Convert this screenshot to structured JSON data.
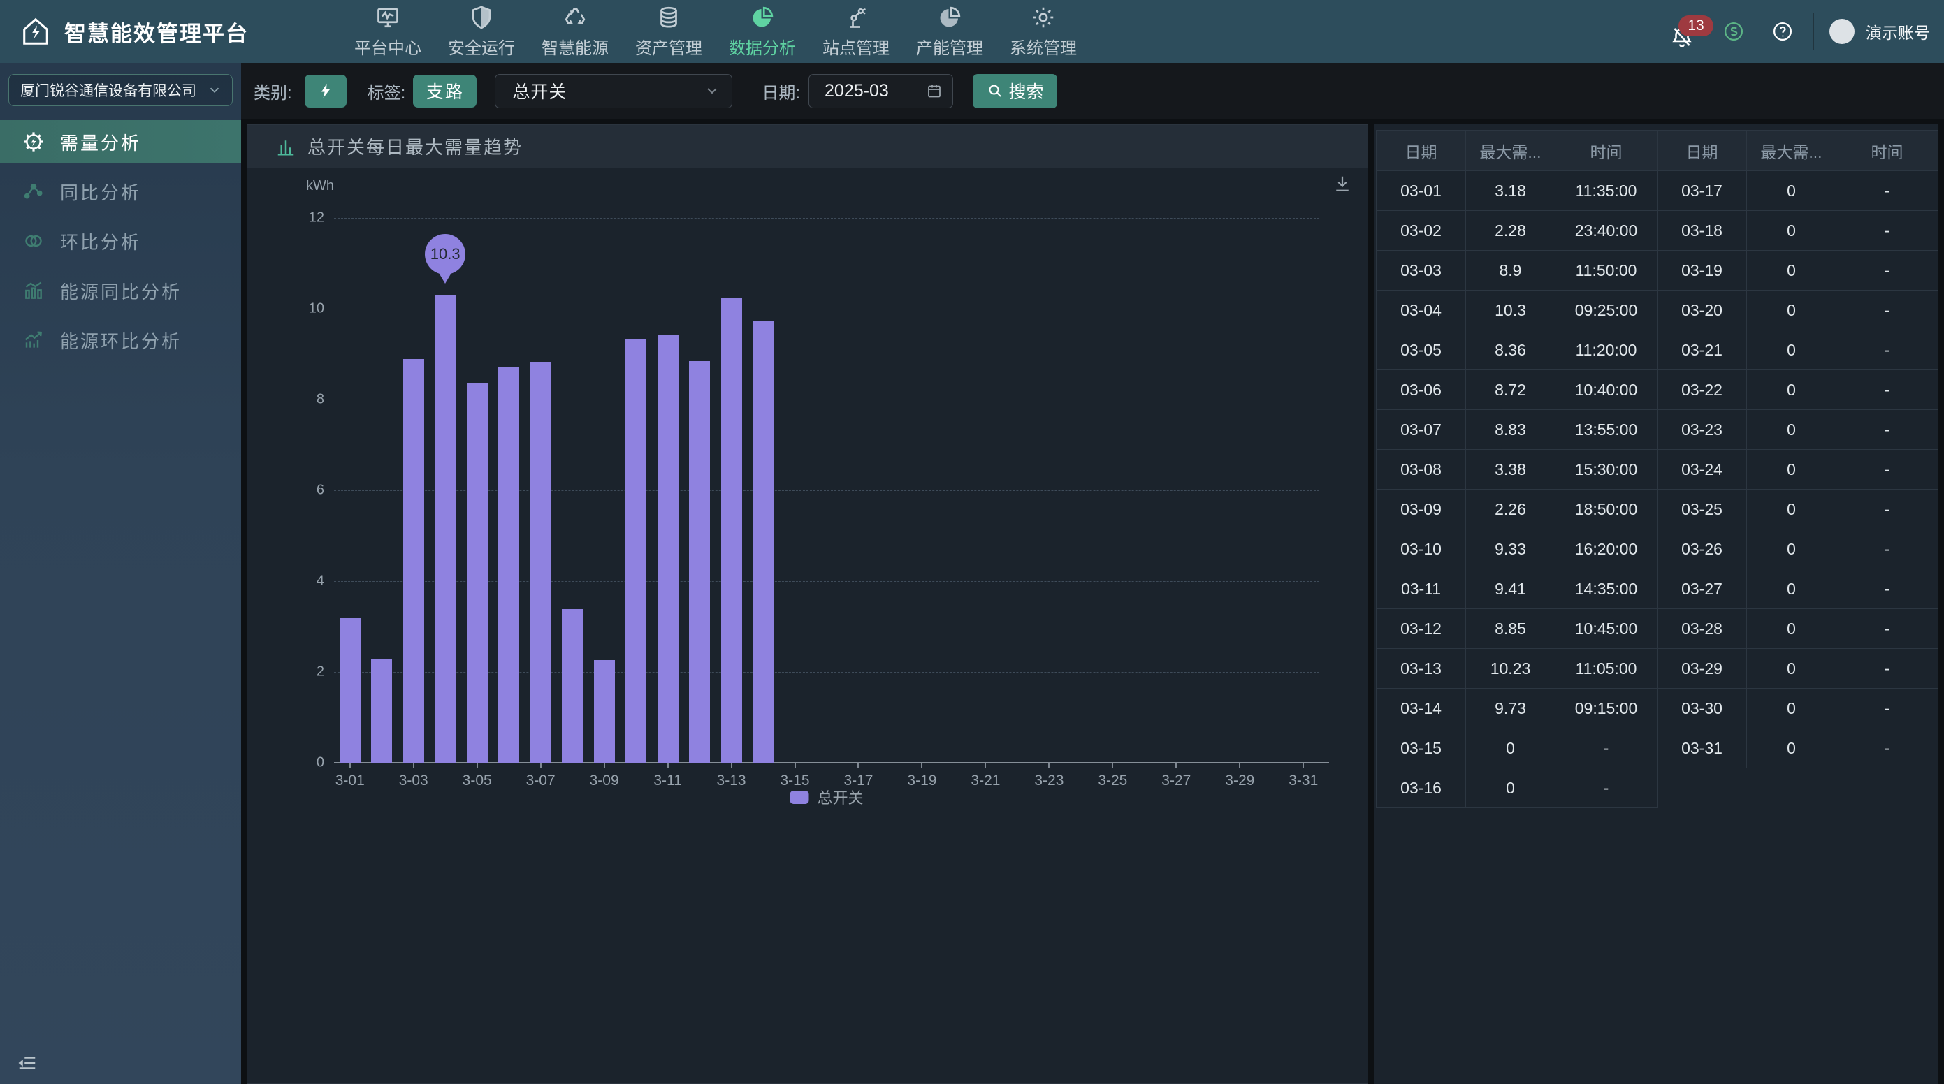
{
  "app_title": "智慧能效管理平台",
  "topnav": {
    "items": [
      {
        "label": "平台中心",
        "icon": "platform-center",
        "active": false
      },
      {
        "label": "安全运行",
        "icon": "safety-run",
        "active": false
      },
      {
        "label": "智慧能源",
        "icon": "smart-energy",
        "active": false
      },
      {
        "label": "资产管理",
        "icon": "asset-management",
        "active": false
      },
      {
        "label": "数据分析",
        "icon": "data-analysis",
        "active": true
      },
      {
        "label": "站点管理",
        "icon": "site-management",
        "active": false
      },
      {
        "label": "产能管理",
        "icon": "capacity-management",
        "active": false
      },
      {
        "label": "系统管理",
        "icon": "system-management",
        "active": false
      }
    ],
    "notification_badge": "13",
    "user_name": "演示账号"
  },
  "sidebar": {
    "company": "厦门锐谷通信设备有限公司",
    "items": [
      {
        "label": "需量分析",
        "icon": "demand-analysis",
        "active": true
      },
      {
        "label": "同比分析",
        "icon": "yoy-analysis",
        "active": false
      },
      {
        "label": "环比分析",
        "icon": "mom-analysis",
        "active": false
      },
      {
        "label": "能源同比分析",
        "icon": "energy-yoy-analysis",
        "active": false
      },
      {
        "label": "能源环比分析",
        "icon": "energy-mom-analysis",
        "active": false
      }
    ]
  },
  "filters": {
    "category_label": "类别:",
    "tag_label": "标签:",
    "tag_button": "支路",
    "switch_select_value": "总开关",
    "date_label": "日期:",
    "date_value": "2025-03",
    "search_button": "搜索"
  },
  "chart_panel": {
    "title": "总开关每日最大需量趋势",
    "unit": "kWh"
  },
  "chart_data": {
    "type": "bar",
    "title": "总开关每日最大需量趋势",
    "xlabel": "",
    "ylabel": "kWh",
    "ylim": [
      0,
      12
    ],
    "yticks": [
      0,
      2,
      4,
      6,
      8,
      10,
      12
    ],
    "grid": true,
    "legend_position": "bottom",
    "categories": [
      "3-01",
      "3-02",
      "3-03",
      "3-04",
      "3-05",
      "3-06",
      "3-07",
      "3-08",
      "3-09",
      "3-10",
      "3-11",
      "3-12",
      "3-13",
      "3-14",
      "3-15",
      "3-16",
      "3-17",
      "3-18",
      "3-19",
      "3-20",
      "3-21",
      "3-22",
      "3-23",
      "3-24",
      "3-25",
      "3-26",
      "3-27",
      "3-28",
      "3-29",
      "3-30",
      "3-31"
    ],
    "xtick_step": 2,
    "series": [
      {
        "name": "总开关",
        "color": "#8f82e0",
        "values": [
          3.18,
          2.28,
          8.9,
          10.3,
          8.36,
          8.72,
          8.83,
          3.38,
          2.26,
          9.33,
          9.41,
          8.85,
          10.23,
          9.73,
          0,
          0,
          0,
          0,
          0,
          0,
          0,
          0,
          0,
          0,
          0,
          0,
          0,
          0,
          0,
          0,
          0
        ]
      }
    ],
    "annotation": {
      "category": "3-04",
      "index": 3,
      "label": "10.3",
      "value": 10.3
    }
  },
  "table": {
    "headers": [
      "日期",
      "最大需...",
      "时间",
      "日期",
      "最大需...",
      "时间"
    ],
    "rows": [
      [
        "03-01",
        "3.18",
        "11:35:00",
        "03-17",
        "0",
        "-"
      ],
      [
        "03-02",
        "2.28",
        "23:40:00",
        "03-18",
        "0",
        "-"
      ],
      [
        "03-03",
        "8.9",
        "11:50:00",
        "03-19",
        "0",
        "-"
      ],
      [
        "03-04",
        "10.3",
        "09:25:00",
        "03-20",
        "0",
        "-"
      ],
      [
        "03-05",
        "8.36",
        "11:20:00",
        "03-21",
        "0",
        "-"
      ],
      [
        "03-06",
        "8.72",
        "10:40:00",
        "03-22",
        "0",
        "-"
      ],
      [
        "03-07",
        "8.83",
        "13:55:00",
        "03-23",
        "0",
        "-"
      ],
      [
        "03-08",
        "3.38",
        "15:30:00",
        "03-24",
        "0",
        "-"
      ],
      [
        "03-09",
        "2.26",
        "18:50:00",
        "03-25",
        "0",
        "-"
      ],
      [
        "03-10",
        "9.33",
        "16:20:00",
        "03-26",
        "0",
        "-"
      ],
      [
        "03-11",
        "9.41",
        "14:35:00",
        "03-27",
        "0",
        "-"
      ],
      [
        "03-12",
        "8.85",
        "10:45:00",
        "03-28",
        "0",
        "-"
      ],
      [
        "03-13",
        "10.23",
        "11:05:00",
        "03-29",
        "0",
        "-"
      ],
      [
        "03-14",
        "9.73",
        "09:15:00",
        "03-30",
        "0",
        "-"
      ],
      [
        "03-15",
        "0",
        "-",
        "03-31",
        "0",
        "-"
      ],
      [
        "03-16",
        "0",
        "-"
      ]
    ]
  },
  "colors": {
    "topbar_bg": "#2d4d5c",
    "sidebar_bg": "#2f4357",
    "active_menu_bg": "#3b7069",
    "accent_teal": "#3e8577",
    "nav_active_green": "#5fd3a2",
    "bar_purple": "#8f82e0",
    "badge_red": "#9e3a40",
    "panel_bg": "#1b232c"
  }
}
